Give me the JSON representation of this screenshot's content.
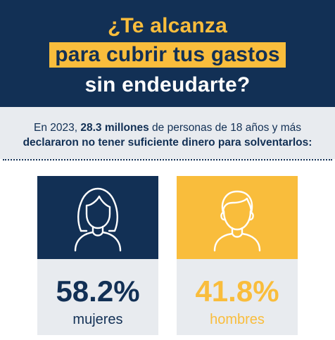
{
  "header": {
    "line1": "¿Te alcanza",
    "line2": "para cubrir tus gastos",
    "line3": "sin endeudarte?"
  },
  "subtitle": {
    "prefix": "En 2023, ",
    "highlight": "28.3 millones",
    "suffix": " de personas de 18 años y más",
    "line2": "declararon no tener suficiente dinero para solventarlos:"
  },
  "stats": {
    "women": {
      "icon": "woman-icon",
      "value": "58.2%",
      "label": "mujeres"
    },
    "men": {
      "icon": "man-icon",
      "value": "41.8%",
      "label": "hombres"
    }
  },
  "colors": {
    "navy": "#123055",
    "gold": "#f9bd3c",
    "light_gray": "#e8ebef"
  }
}
